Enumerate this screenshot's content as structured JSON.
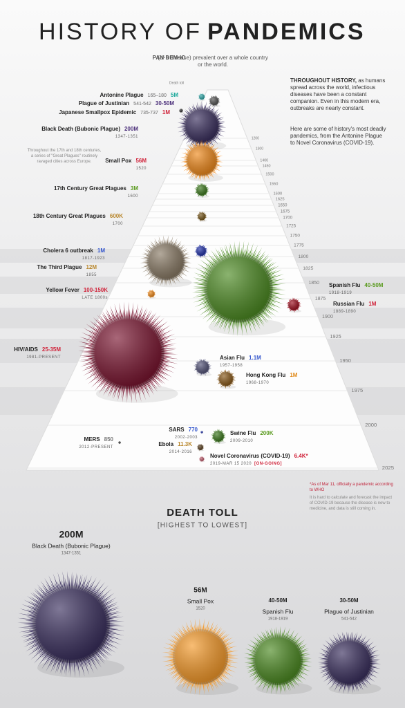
{
  "header": {
    "title_light": "HISTORY OF",
    "title_bold": "PANDEMICS",
    "definition_term": "PAN·DEM·IC",
    "definition": "(of a disease) prevalent over a whole country or the world."
  },
  "intro": {
    "lead": "THROUGHOUT HISTORY,",
    "text": "as humans spread across the world, infectious diseases have been a constant companion. Even in this modern era, outbreaks are nearly constant.",
    "text2": "Here are some of history's most deadly pandemics, from the Antonine Plague to Novel Coronavirus (COVID-19)."
  },
  "side_note": "Throughout the 17th and 18th centuries, a series of \"Great Plagues\" routinely ravaged cities across Europe.",
  "timeline": {
    "death_toll_label": "Death toll",
    "years": [
      1200,
      1300,
      1400,
      1450,
      1500,
      1550,
      1600,
      1625,
      1650,
      1675,
      1700,
      1725,
      1750,
      1775,
      1800,
      1825,
      1850,
      1875,
      1900,
      1925,
      1950,
      1975,
      2000,
      2025
    ]
  },
  "pandemics": [
    {
      "name": "Antonine Plague",
      "dates": "165–180",
      "toll": "5M"
    },
    {
      "name": "Plague of Justinian",
      "dates": "541-542",
      "toll": "30-50M"
    },
    {
      "name": "Japanese Smallpox Epidemic",
      "dates": "735-737",
      "toll": "1M"
    },
    {
      "name": "Black Death (Bubonic Plague)",
      "dates": "1347-1351",
      "toll": "200M"
    },
    {
      "name": "Small Pox",
      "dates": "1520",
      "toll": "56M"
    },
    {
      "name": "17th Century Great Plagues",
      "dates": "1600",
      "toll": "3M"
    },
    {
      "name": "18th Century Great Plagues",
      "dates": "1700",
      "toll": "600K"
    },
    {
      "name": "Cholera 6 outbreak",
      "dates": "1817-1923",
      "toll": "1M"
    },
    {
      "name": "The Third Plague",
      "dates": "1855",
      "toll": "12M"
    },
    {
      "name": "Yellow Fever",
      "dates": "LATE 1800s",
      "toll": "100-150K"
    },
    {
      "name": "Spanish Flu",
      "dates": "1918-1919",
      "toll": "40-50M"
    },
    {
      "name": "Russian Flu",
      "dates": "1889-1890",
      "toll": "1M"
    },
    {
      "name": "HIV/AIDS",
      "dates": "1981-PRESENT",
      "toll": "25-35M"
    },
    {
      "name": "Asian Flu",
      "dates": "1957-1958",
      "toll": "1.1M"
    },
    {
      "name": "Hong Kong Flu",
      "dates": "1968-1970",
      "toll": "1M"
    },
    {
      "name": "SARS",
      "dates": "2002-2003",
      "toll": "770"
    },
    {
      "name": "Swine Flu",
      "dates": "2009-2010",
      "toll": "200K"
    },
    {
      "name": "MERS",
      "dates": "2012-PRESENT",
      "toll": "850"
    },
    {
      "name": "Ebola",
      "dates": "2014-2016",
      "toll": "11.3K"
    },
    {
      "name": "Novel Coronavirus (COVID-19)",
      "dates": "2019-MAR 15 2020",
      "toll": "6.4K*",
      "status": "[ON-GOING]"
    }
  ],
  "footnote": {
    "asterisk": "*As of Mar 11, officially a pandemic according to WHO",
    "text": "It is hard to calculate and forecast the impact of COVID-19 because the disease is new to medicine, and data is still coming in."
  },
  "ranking": {
    "title": "DEATH TOLL",
    "subtitle": "[HIGHEST TO LOWEST]",
    "items": [
      {
        "toll": "200M",
        "name": "Black Death (Bubonic Plague)",
        "dates": "1347-1351"
      },
      {
        "toll": "56M",
        "name": "Small Pox",
        "dates": "1520"
      },
      {
        "toll": "40-50M",
        "name": "Spanish Flu",
        "dates": "1918-1919"
      },
      {
        "toll": "30-50M",
        "name": "Plague of Justinian",
        "dates": "541-542"
      }
    ]
  }
}
